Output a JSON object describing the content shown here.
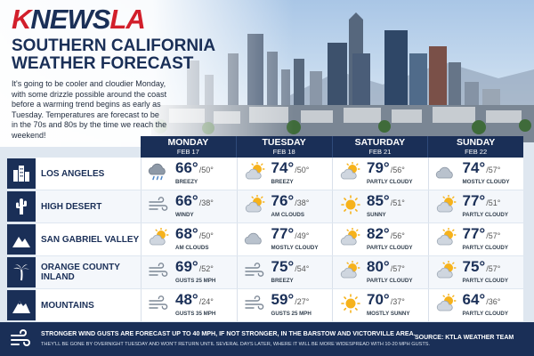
{
  "brand": {
    "logo_part1": "K",
    "logo_part2": "NEWS",
    "logo_part3": "LA",
    "accent_red": "#d21f2b",
    "navy": "#1a2f57"
  },
  "headline": {
    "line1": "Southern California",
    "line2": "Weather Forecast"
  },
  "intro": "It's going to be cooler and cloudier Monday, with some drizzle possible around the coast before a warming trend begins as early as Tuesday. Temperatures are forecast to be in the 70s and 80s by the time we reach the weekend!",
  "days": [
    {
      "name": "MONDAY",
      "date": "FEB 17"
    },
    {
      "name": "TUESDAY",
      "date": "FEB 18"
    },
    {
      "name": "SATURDAY",
      "date": "FEB 21"
    },
    {
      "name": "SUNDAY",
      "date": "FEB 22"
    }
  ],
  "regions": [
    {
      "name": "LOS ANGELES",
      "icon": "buildings-icon",
      "forecast": [
        {
          "icon": "rain-cloud-icon",
          "hi": "66°",
          "lo": "50°",
          "cond": "BREEZY"
        },
        {
          "icon": "partly-cloudy-icon",
          "hi": "74°",
          "lo": "50°",
          "cond": "BREEZY"
        },
        {
          "icon": "partly-cloudy-icon",
          "hi": "79°",
          "lo": "56°",
          "cond": "PARTLY CLOUDY"
        },
        {
          "icon": "cloud-icon",
          "hi": "74°",
          "lo": "57°",
          "cond": "MOSTLY CLOUDY"
        }
      ]
    },
    {
      "name": "HIGH DESERT",
      "icon": "cactus-icon",
      "forecast": [
        {
          "icon": "wind-icon",
          "hi": "66°",
          "lo": "38°",
          "cond": "WINDY"
        },
        {
          "icon": "partly-cloudy-icon",
          "hi": "76°",
          "lo": "38°",
          "cond": "AM CLOUDS"
        },
        {
          "icon": "sun-icon",
          "hi": "85°",
          "lo": "51°",
          "cond": "SUNNY"
        },
        {
          "icon": "partly-cloudy-icon",
          "hi": "77°",
          "lo": "51°",
          "cond": "PARTLY CLOUDY"
        }
      ]
    },
    {
      "name": "SAN GABRIEL VALLEY",
      "icon": "mountain-icon",
      "forecast": [
        {
          "icon": "partly-cloudy-icon",
          "hi": "68°",
          "lo": "50°",
          "cond": "AM CLOUDS"
        },
        {
          "icon": "cloud-icon",
          "hi": "77°",
          "lo": "49°",
          "cond": "MOSTLY CLOUDY"
        },
        {
          "icon": "partly-cloudy-icon",
          "hi": "82°",
          "lo": "56°",
          "cond": "PARTLY CLOUDY"
        },
        {
          "icon": "partly-cloudy-icon",
          "hi": "77°",
          "lo": "57°",
          "cond": "PARTLY CLOUDY"
        }
      ]
    },
    {
      "name": "ORANGE COUNTY INLAND",
      "icon": "palm-tree-icon",
      "forecast": [
        {
          "icon": "wind-icon",
          "hi": "69°",
          "lo": "52°",
          "cond": "GUSTS 25 MPH"
        },
        {
          "icon": "wind-icon",
          "hi": "75°",
          "lo": "54°",
          "cond": "BREEZY"
        },
        {
          "icon": "partly-cloudy-icon",
          "hi": "80°",
          "lo": "57°",
          "cond": "PARTLY CLOUDY"
        },
        {
          "icon": "partly-cloudy-icon",
          "hi": "75°",
          "lo": "57°",
          "cond": "PARTLY CLOUDY"
        }
      ]
    },
    {
      "name": "MOUNTAINS",
      "icon": "snow-mountain-icon",
      "forecast": [
        {
          "icon": "wind-icon",
          "hi": "48°",
          "lo": "24°",
          "cond": "GUSTS 35 MPH"
        },
        {
          "icon": "wind-icon",
          "hi": "59°",
          "lo": "27°",
          "cond": "GUSTS 25 MPH"
        },
        {
          "icon": "sun-icon",
          "hi": "70°",
          "lo": "37°",
          "cond": "MOSTLY SUNNY"
        },
        {
          "icon": "partly-cloudy-icon",
          "hi": "64°",
          "lo": "36°",
          "cond": "PARTLY CLOUDY"
        }
      ]
    }
  ],
  "footer": {
    "line1": "STRONGER WIND GUSTS ARE FORECAST UP TO 40 MPH, IF NOT STRONGER, IN THE BARSTOW AND VICTORVILLE AREA.",
    "line2": "THEY'LL BE GONE BY OVERNIGHT TUESDAY AND WON'T RETURN UNTIL SEVERAL DAYS LATER, WHERE IT WILL BE MORE WIDESPREAD WITH 10-20 MPH GUSTS.",
    "source": "SOURCE: KTLA WEATHER TEAM"
  }
}
